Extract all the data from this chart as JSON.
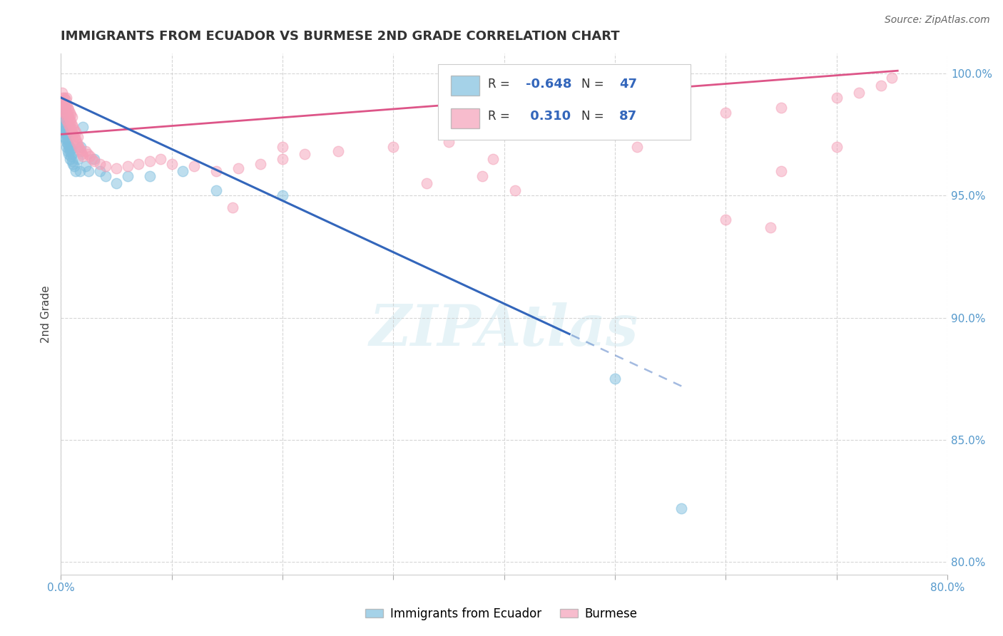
{
  "title": "IMMIGRANTS FROM ECUADOR VS BURMESE 2ND GRADE CORRELATION CHART",
  "source": "Source: ZipAtlas.com",
  "ylabel": "2nd Grade",
  "xlim": [
    0.0,
    0.8
  ],
  "ylim": [
    0.795,
    1.008
  ],
  "x_ticks": [
    0.0,
    0.1,
    0.2,
    0.3,
    0.4,
    0.5,
    0.6,
    0.7,
    0.8
  ],
  "y_ticks": [
    0.8,
    0.85,
    0.9,
    0.95,
    1.0
  ],
  "y_tick_labels": [
    "80.0%",
    "85.0%",
    "90.0%",
    "95.0%",
    "100.0%"
  ],
  "blue_R": -0.648,
  "blue_N": 47,
  "pink_R": 0.31,
  "pink_N": 87,
  "blue_color": "#7fbfdf",
  "pink_color": "#f4a0b8",
  "blue_line_color": "#3366bb",
  "pink_line_color": "#dd5588",
  "legend_label_blue": "Immigrants from Ecuador",
  "legend_label_pink": "Burmese",
  "watermark": "ZIPAtlas",
  "background_color": "#ffffff",
  "grid_color": "#cccccc",
  "axis_label_color": "#5599cc",
  "blue_line_x0": 0.0,
  "blue_line_y0": 0.99,
  "blue_line_x1": 0.56,
  "blue_line_y1": 0.872,
  "blue_line_solid_end": 0.46,
  "pink_line_x0": 0.0,
  "pink_line_y0": 0.975,
  "pink_line_x1": 0.755,
  "pink_line_y1": 1.001,
  "blue_scatter_x": [
    0.001,
    0.001,
    0.002,
    0.002,
    0.002,
    0.003,
    0.003,
    0.003,
    0.003,
    0.004,
    0.004,
    0.004,
    0.005,
    0.005,
    0.005,
    0.006,
    0.006,
    0.006,
    0.007,
    0.007,
    0.008,
    0.008,
    0.008,
    0.009,
    0.009,
    0.01,
    0.01,
    0.011,
    0.012,
    0.013,
    0.015,
    0.017,
    0.018,
    0.02,
    0.022,
    0.025,
    0.03,
    0.035,
    0.04,
    0.05,
    0.06,
    0.08,
    0.11,
    0.14,
    0.2,
    0.5,
    0.56
  ],
  "blue_scatter_y": [
    0.984,
    0.98,
    0.98,
    0.978,
    0.982,
    0.976,
    0.978,
    0.974,
    0.976,
    0.973,
    0.975,
    0.977,
    0.97,
    0.972,
    0.975,
    0.968,
    0.971,
    0.973,
    0.967,
    0.97,
    0.965,
    0.968,
    0.97,
    0.966,
    0.969,
    0.964,
    0.967,
    0.963,
    0.962,
    0.96,
    0.965,
    0.96,
    0.97,
    0.978,
    0.962,
    0.96,
    0.965,
    0.96,
    0.958,
    0.955,
    0.958,
    0.958,
    0.96,
    0.952,
    0.95,
    0.875,
    0.822
  ],
  "pink_scatter_x": [
    0.001,
    0.001,
    0.002,
    0.002,
    0.002,
    0.003,
    0.003,
    0.003,
    0.004,
    0.004,
    0.004,
    0.005,
    0.005,
    0.005,
    0.005,
    0.006,
    0.006,
    0.006,
    0.007,
    0.007,
    0.007,
    0.008,
    0.008,
    0.008,
    0.009,
    0.009,
    0.009,
    0.01,
    0.01,
    0.01,
    0.011,
    0.011,
    0.012,
    0.012,
    0.013,
    0.013,
    0.014,
    0.015,
    0.015,
    0.016,
    0.017,
    0.018,
    0.019,
    0.02,
    0.022,
    0.024,
    0.026,
    0.028,
    0.03,
    0.035,
    0.04,
    0.05,
    0.06,
    0.07,
    0.08,
    0.09,
    0.1,
    0.12,
    0.14,
    0.16,
    0.18,
    0.2,
    0.22,
    0.25,
    0.3,
    0.35,
    0.4,
    0.45,
    0.5,
    0.55,
    0.6,
    0.65,
    0.7,
    0.72,
    0.74,
    0.75,
    0.33,
    0.38,
    0.6,
    0.64,
    0.41,
    0.2,
    0.155,
    0.39,
    0.52,
    0.65,
    0.7
  ],
  "pink_scatter_y": [
    0.988,
    0.992,
    0.988,
    0.985,
    0.99,
    0.984,
    0.987,
    0.99,
    0.983,
    0.986,
    0.989,
    0.981,
    0.984,
    0.987,
    0.99,
    0.98,
    0.983,
    0.986,
    0.979,
    0.982,
    0.985,
    0.978,
    0.981,
    0.984,
    0.977,
    0.98,
    0.983,
    0.976,
    0.979,
    0.982,
    0.975,
    0.978,
    0.974,
    0.977,
    0.973,
    0.976,
    0.972,
    0.971,
    0.974,
    0.97,
    0.969,
    0.968,
    0.967,
    0.966,
    0.968,
    0.967,
    0.966,
    0.965,
    0.964,
    0.963,
    0.962,
    0.961,
    0.962,
    0.963,
    0.964,
    0.965,
    0.963,
    0.962,
    0.96,
    0.961,
    0.963,
    0.965,
    0.967,
    0.968,
    0.97,
    0.972,
    0.975,
    0.978,
    0.98,
    0.982,
    0.984,
    0.986,
    0.99,
    0.992,
    0.995,
    0.998,
    0.955,
    0.958,
    0.94,
    0.937,
    0.952,
    0.97,
    0.945,
    0.965,
    0.97,
    0.96,
    0.97
  ]
}
